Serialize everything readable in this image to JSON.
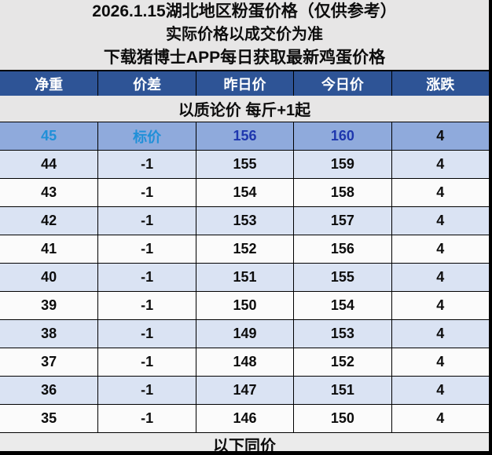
{
  "banner": {
    "line1": "2026.1.15湖北地区粉蛋价格（仅供参考）",
    "line2": "实际价格以成交价为准",
    "line3": "下载猪博士APP每日获取最新鸡蛋价格"
  },
  "table": {
    "headers": [
      "净重",
      "价差",
      "昨日价",
      "今日价",
      "涨跌"
    ],
    "subheader": "以质论价 每斤+1起",
    "footer": "以下同价",
    "rows": [
      {
        "net_weight": "45",
        "diff": "标价",
        "yesterday": "156",
        "today": "160",
        "change": "4"
      },
      {
        "net_weight": "44",
        "diff": "-1",
        "yesterday": "155",
        "today": "159",
        "change": "4"
      },
      {
        "net_weight": "43",
        "diff": "-1",
        "yesterday": "154",
        "today": "158",
        "change": "4"
      },
      {
        "net_weight": "42",
        "diff": "-1",
        "yesterday": "153",
        "today": "157",
        "change": "4"
      },
      {
        "net_weight": "41",
        "diff": "-1",
        "yesterday": "152",
        "today": "156",
        "change": "4"
      },
      {
        "net_weight": "40",
        "diff": "-1",
        "yesterday": "151",
        "today": "155",
        "change": "4"
      },
      {
        "net_weight": "39",
        "diff": "-1",
        "yesterday": "150",
        "today": "154",
        "change": "4"
      },
      {
        "net_weight": "38",
        "diff": "-1",
        "yesterday": "149",
        "today": "153",
        "change": "4"
      },
      {
        "net_weight": "37",
        "diff": "-1",
        "yesterday": "148",
        "today": "152",
        "change": "4"
      },
      {
        "net_weight": "36",
        "diff": "-1",
        "yesterday": "147",
        "today": "151",
        "change": "4"
      },
      {
        "net_weight": "35",
        "diff": "-1",
        "yesterday": "146",
        "today": "150",
        "change": "4"
      }
    ]
  },
  "colors": {
    "header_bg": "#2e5496",
    "highlight_row_bg": "#8faadc",
    "alt_row_bg": "#dae3f3",
    "white_row_bg": "#fbfbfb",
    "banner_bg": "#e7e6e6",
    "azure_text": "#2090d8",
    "navy_text": "#1e37ae",
    "grid_line": "#000000"
  },
  "chart_data": {
    "type": "table",
    "title": "2026.1.15湖北地区粉蛋价格（仅供参考）",
    "notes": [
      "实际价格以成交价为准",
      "下载猪博士APP每日获取最新鸡蛋价格",
      "以质论价 每斤+1起",
      "以下同价"
    ],
    "columns": [
      "净重",
      "价差",
      "昨日价",
      "今日价",
      "涨跌"
    ],
    "rows": [
      [
        "45",
        "标价",
        156,
        160,
        4
      ],
      [
        "44",
        "-1",
        155,
        159,
        4
      ],
      [
        "43",
        "-1",
        154,
        158,
        4
      ],
      [
        "42",
        "-1",
        153,
        157,
        4
      ],
      [
        "41",
        "-1",
        152,
        156,
        4
      ],
      [
        "40",
        "-1",
        151,
        155,
        4
      ],
      [
        "39",
        "-1",
        150,
        154,
        4
      ],
      [
        "38",
        "-1",
        149,
        153,
        4
      ],
      [
        "37",
        "-1",
        148,
        152,
        4
      ],
      [
        "36",
        "-1",
        147,
        151,
        4
      ],
      [
        "35",
        "-1",
        146,
        150,
        4
      ]
    ]
  }
}
